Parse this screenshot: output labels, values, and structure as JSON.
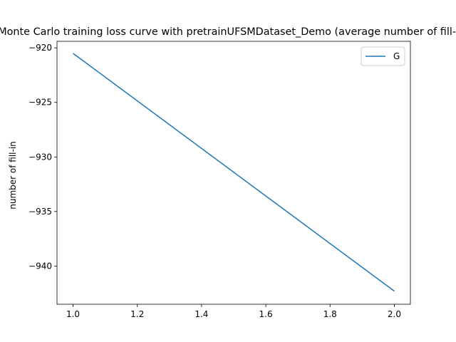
{
  "chart_data": {
    "type": "line",
    "title": "Monte Carlo training loss curve with pretrainUFSMDataset_Demo (average number of fill-in)",
    "xlabel": "",
    "ylabel": "number of fill-in",
    "xlim": [
      0.95,
      2.05
    ],
    "ylim": [
      -943.5,
      -919.4
    ],
    "xticks": [
      1.0,
      1.2,
      1.4,
      1.6,
      1.8,
      2.0
    ],
    "xtick_labels": [
      "1.0",
      "1.2",
      "1.4",
      "1.6",
      "1.8",
      "2.0"
    ],
    "yticks": [
      -940,
      -935,
      -930,
      -925,
      -920
    ],
    "ytick_labels": [
      "−940",
      "−935",
      "−930",
      "−925",
      "−920"
    ],
    "grid": false,
    "legend_position": "upper right",
    "series": [
      {
        "name": "G",
        "color": "#1f77b4",
        "x": [
          1.0,
          2.0
        ],
        "y": [
          -920.5,
          -942.3
        ]
      }
    ]
  }
}
